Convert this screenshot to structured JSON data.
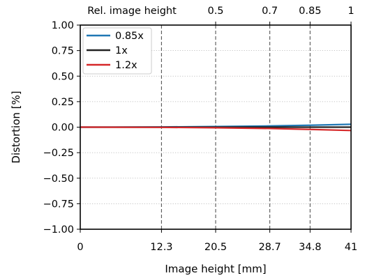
{
  "chart_data": {
    "type": "line",
    "xlabel": "Image height [mm]",
    "ylabel": "Distortion [%]",
    "xlim": [
      0,
      41
    ],
    "ylim": [
      -1.0,
      1.0
    ],
    "x_ticks": [
      0,
      12.3,
      20.5,
      28.7,
      34.8,
      41
    ],
    "x_tick_labels": [
      "0",
      "12.3",
      "20.5",
      "28.7",
      "34.8",
      "41"
    ],
    "y_ticks": [
      -1.0,
      -0.75,
      -0.5,
      -0.25,
      0.0,
      0.25,
      0.5,
      0.75,
      1.0
    ],
    "y_tick_labels": [
      "−1.00",
      "−0.75",
      "−0.50",
      "−0.25",
      "0.00",
      "0.25",
      "0.50",
      "0.75",
      "1.00"
    ],
    "top_axis": {
      "label": "Rel. image height",
      "ticks": [
        20.5,
        28.7,
        34.8,
        41
      ],
      "tick_labels": [
        "0.5",
        "0.7",
        "0.85",
        "1"
      ]
    },
    "vertical_reference_lines": [
      12.3,
      20.5,
      28.7,
      34.8
    ],
    "grid": "horizontal dotted",
    "legend_position": "top-left",
    "series": [
      {
        "name": "0.85x",
        "color": "#1f77b4",
        "x": [
          0,
          12.3,
          20.5,
          28.7,
          34.8,
          41
        ],
        "y": [
          0.0,
          0.002,
          0.006,
          0.012,
          0.019,
          0.028
        ]
      },
      {
        "name": "1x",
        "color": "#222222",
        "x": [
          0,
          12.3,
          20.5,
          28.7,
          34.8,
          41
        ],
        "y": [
          0.0,
          0.0,
          0.0,
          0.0,
          0.0,
          0.0
        ]
      },
      {
        "name": "1.2x",
        "color": "#d62728",
        "x": [
          0,
          12.3,
          20.5,
          28.7,
          34.8,
          41
        ],
        "y": [
          0.0,
          -0.002,
          -0.006,
          -0.013,
          -0.022,
          -0.033
        ]
      }
    ]
  }
}
